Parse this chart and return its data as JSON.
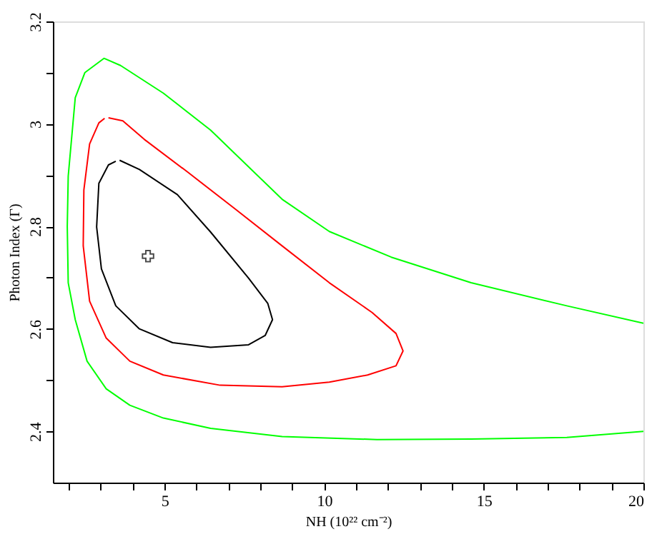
{
  "chart_data": {
    "type": "line",
    "xlabel": "NH (10²² cm⁻²)",
    "ylabel": "Photon Index (Γ)",
    "xlim": [
      1.5,
      20
    ],
    "ylim": [
      2.3,
      3.2
    ],
    "xticks": [
      {
        "value": 2,
        "label": null
      },
      {
        "value": 3,
        "label": null
      },
      {
        "value": 4,
        "label": null
      },
      5,
      {
        "value": 6,
        "label": null
      },
      {
        "value": 7,
        "label": null
      },
      {
        "value": 8,
        "label": null
      },
      {
        "value": 9,
        "label": null
      },
      10,
      {
        "value": 11,
        "label": null
      },
      {
        "value": 12,
        "label": null
      },
      {
        "value": 13,
        "label": null
      },
      {
        "value": 14,
        "label": null
      },
      15,
      {
        "value": 16,
        "label": null
      },
      {
        "value": 17,
        "label": null
      },
      {
        "value": 18,
        "label": null
      },
      {
        "value": 19,
        "label": null
      },
      20
    ],
    "yticks": [
      2.4,
      {
        "value": 2.5,
        "label": null
      },
      2.6,
      {
        "value": 2.7,
        "label": null
      },
      2.8,
      {
        "value": 2.9,
        "label": null
      },
      3,
      {
        "value": 3.1,
        "label": null
      },
      3.2
    ],
    "grid": false,
    "line_style": "solid",
    "marker": "none",
    "series": [
      {
        "color": "#00ff00",
        "x": [
          20,
          17.6,
          14.6,
          12.1,
          10.16,
          8.68,
          6.44,
          4.96,
          3.62,
          3.1,
          2.5,
          2.2,
          1.98,
          1.95,
          1.98,
          2.2,
          2.57,
          3.17,
          3.91,
          4.96,
          6.44,
          8.68,
          11.65,
          14.6,
          17.6,
          20
        ],
        "values": [
          2.611,
          2.645,
          2.69,
          2.74,
          2.79,
          2.853,
          2.988,
          3.06,
          3.114,
          3.128,
          3.1,
          3.051,
          2.898,
          2.8,
          2.69,
          2.618,
          2.537,
          2.483,
          2.451,
          2.426,
          2.406,
          2.39,
          2.384,
          2.385,
          2.388,
          2.4
        ]
      },
      {
        "color": "#ff0000",
        "x": [
          3.24,
          3.69,
          4.36,
          5.7,
          7.19,
          8.68,
          10.16,
          11.5,
          12.25,
          12.47,
          12.25,
          11.36,
          10.16,
          8.68,
          6.74,
          4.96,
          3.91,
          3.17,
          2.65,
          2.45,
          2.47,
          2.65,
          2.94,
          3.12
        ],
        "values": [
          3.012,
          3.006,
          2.97,
          2.907,
          2.835,
          2.762,
          2.69,
          2.632,
          2.591,
          2.557,
          2.528,
          2.51,
          2.496,
          2.487,
          2.49,
          2.51,
          2.537,
          2.582,
          2.654,
          2.762,
          2.871,
          2.961,
          3.002,
          3.011
        ]
      },
      {
        "color": "#000000",
        "x": [
          3.59,
          4.21,
          5.4,
          6.44,
          7.63,
          8.23,
          8.38,
          8.15,
          7.63,
          6.44,
          5.25,
          4.21,
          3.47,
          3.02,
          2.87,
          2.94,
          3.24,
          3.47
        ],
        "values": [
          2.929,
          2.911,
          2.862,
          2.789,
          2.699,
          2.65,
          2.618,
          2.587,
          2.569,
          2.564,
          2.573,
          2.6,
          2.645,
          2.717,
          2.799,
          2.884,
          2.92,
          2.927
        ]
      },
      {
        "type": "scatter",
        "marker": "cross",
        "color": "#000000",
        "x": [
          4.48
        ],
        "values": [
          2.742
        ]
      }
    ]
  }
}
